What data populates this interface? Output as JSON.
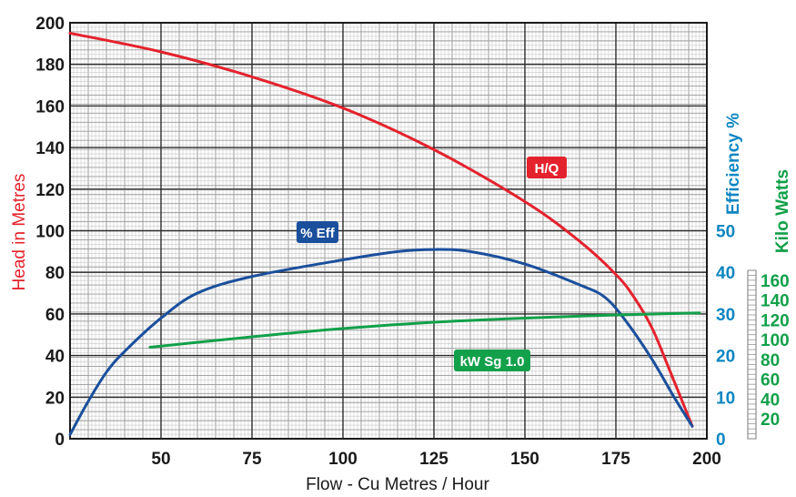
{
  "chart_data": {
    "type": "line",
    "xlabel": "Flow - Cu Metres / Hour",
    "x_ticks": [
      50,
      75,
      100,
      125,
      150,
      175,
      200
    ],
    "xlim": [
      25,
      200
    ],
    "axes": {
      "head": {
        "label": "Head in Metres",
        "ylim": [
          0,
          200
        ],
        "ticks": [
          0,
          20,
          40,
          60,
          80,
          100,
          120,
          140,
          160,
          180,
          200
        ],
        "color": "#e4222d"
      },
      "efficiency": {
        "label": "Efficiency %",
        "ylim": [
          0,
          100
        ],
        "ticks": [
          0,
          10,
          20,
          30,
          40,
          50
        ],
        "color": "#0e86c2"
      },
      "kw": {
        "label": "Kilo Watts",
        "ylim": [
          0,
          200
        ],
        "ticks": [
          20,
          40,
          60,
          80,
          100,
          120,
          140,
          160
        ],
        "color": "#12a04a"
      }
    },
    "series": [
      {
        "name": "H/Q",
        "axis": "head",
        "color": "#e4222d",
        "x": [
          25,
          50,
          75,
          100,
          125,
          150,
          165,
          175,
          180,
          185,
          190,
          196
        ],
        "y": [
          195,
          186,
          174,
          159,
          139,
          114,
          95,
          79,
          68,
          53,
          32,
          6
        ]
      },
      {
        "name": "% Eff",
        "axis": "efficiency",
        "color": "#1a4f9c",
        "x": [
          25,
          30,
          35,
          40,
          50,
          60,
          75,
          100,
          115,
          125,
          135,
          150,
          165,
          172,
          178,
          185,
          191,
          196
        ],
        "y": [
          1,
          9,
          16,
          21,
          29,
          35,
          39,
          43,
          45,
          45.5,
          45,
          42,
          37,
          34,
          28,
          19,
          10,
          3
        ]
      },
      {
        "name": "kW Sg 1.0",
        "axis": "kw",
        "color": "#12a04a",
        "x": [
          47,
          75,
          100,
          125,
          150,
          175,
          198
        ],
        "y": [
          44,
          49,
          53,
          56,
          58,
          59.5,
          60.5
        ]
      }
    ]
  }
}
